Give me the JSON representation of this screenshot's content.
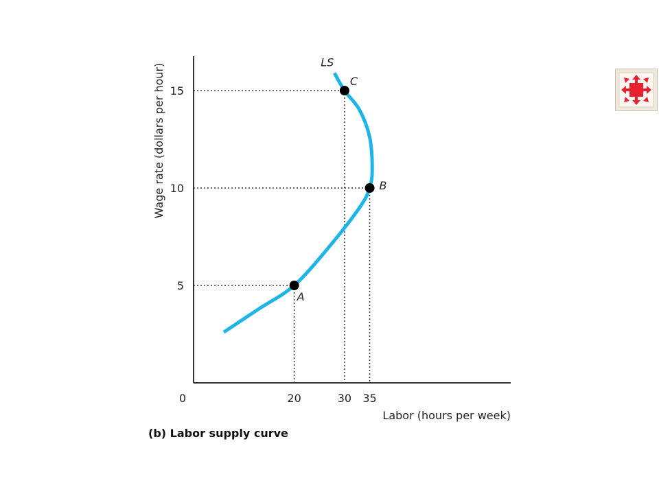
{
  "chart_data": {
    "type": "line",
    "caption": "(b) Labor supply curve",
    "xlabel": "Labor (hours per week)",
    "ylabel": "Wage rate (dollars per hour)",
    "xlim": [
      0,
      63
    ],
    "ylim": [
      0,
      17
    ],
    "origin_label": "0",
    "x_ticks": [
      {
        "value": 20,
        "label": "20"
      },
      {
        "value": 30,
        "label": "30"
      },
      {
        "value": 35,
        "label": "35"
      }
    ],
    "y_ticks": [
      {
        "value": 5,
        "label": "5"
      },
      {
        "value": 10,
        "label": "10"
      },
      {
        "value": 15,
        "label": "15"
      }
    ],
    "series": [
      {
        "name": "LS",
        "color": "#1eb4e6",
        "x": [
          6,
          13,
          20,
          27,
          33,
          35,
          35.5,
          35,
          33,
          30,
          28
        ],
        "y": [
          2.6,
          3.8,
          5,
          7,
          9,
          10,
          11,
          12.6,
          14,
          15,
          15.9
        ]
      }
    ],
    "points": [
      {
        "label": "A",
        "x": 20,
        "y": 5
      },
      {
        "label": "B",
        "x": 35,
        "y": 10
      },
      {
        "label": "C",
        "x": 30,
        "y": 15
      }
    ],
    "grid": false,
    "guide_lines": "dotted"
  },
  "controls": {
    "nav_icon": "fullscreen-arrows-icon",
    "nav_color": "#e8212e"
  }
}
